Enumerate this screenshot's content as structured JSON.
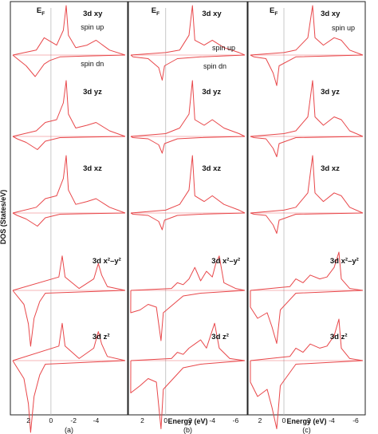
{
  "y_axis_label": "DOS (States/eV)",
  "fermi_label": "E",
  "fermi_subscript": "F",
  "spin_up_label": "spin up",
  "spin_dn_label": "spin dn",
  "x_axis_label": "Energy (eV)",
  "colors": {
    "curve": "#e8474a",
    "axis": "#777777",
    "fermi": "#bbbbbb",
    "frame": "#222222"
  },
  "chart_data": [
    {
      "type": "line",
      "panel": "(a)",
      "x_ticks": [
        "2",
        "0",
        "-2",
        "-4"
      ],
      "xlim": [
        -6.8,
        3.6
      ],
      "x_reversed": true,
      "grid": false,
      "series": [
        {
          "name": "3d xy",
          "up": [
            [
              1.3,
              0.1
            ],
            [
              0.6,
              0.35
            ],
            [
              -0.5,
              0.2
            ],
            [
              -1.1,
              0.5
            ],
            [
              -1.35,
              1.0
            ],
            [
              -1.55,
              0.4
            ],
            [
              -2.2,
              0.15
            ],
            [
              -3.2,
              0.2
            ],
            [
              -4.0,
              0.3
            ],
            [
              -5.2,
              0.1
            ]
          ],
          "dn": [
            [
              3.0,
              -0.1
            ],
            [
              2.2,
              -0.3
            ],
            [
              1.4,
              -0.6
            ],
            [
              0.6,
              -0.25
            ],
            [
              0.1,
              -0.15
            ],
            [
              -0.8,
              -0.05
            ],
            [
              -3.0,
              -0.03
            ]
          ]
        },
        {
          "name": "3d yz",
          "up": [
            [
              1.3,
              0.1
            ],
            [
              0.5,
              0.25
            ],
            [
              -0.5,
              0.3
            ],
            [
              -1.1,
              0.6
            ],
            [
              -1.35,
              1.0
            ],
            [
              -1.55,
              0.4
            ],
            [
              -2.2,
              0.15
            ],
            [
              -3.2,
              0.2
            ],
            [
              -4.0,
              0.25
            ],
            [
              -5.2,
              0.1
            ]
          ],
          "dn": [
            [
              3.0,
              -0.1
            ],
            [
              2.2,
              -0.25
            ],
            [
              1.2,
              -0.55
            ],
            [
              0.5,
              -0.2
            ],
            [
              -0.8,
              -0.05
            ],
            [
              -3.0,
              -0.03
            ]
          ]
        },
        {
          "name": "3d xz",
          "up": [
            [
              1.3,
              0.1
            ],
            [
              0.5,
              0.25
            ],
            [
              -0.5,
              0.3
            ],
            [
              -1.1,
              0.6
            ],
            [
              -1.35,
              1.0
            ],
            [
              -1.55,
              0.4
            ],
            [
              -2.2,
              0.15
            ],
            [
              -3.2,
              0.2
            ],
            [
              -4.0,
              0.25
            ],
            [
              -5.2,
              0.1
            ]
          ],
          "dn": [
            [
              3.0,
              -0.1
            ],
            [
              2.2,
              -0.25
            ],
            [
              1.2,
              -0.55
            ],
            [
              0.5,
              -0.2
            ],
            [
              -0.8,
              -0.05
            ],
            [
              -3.0,
              -0.03
            ]
          ]
        },
        {
          "name": "3d x²–y²",
          "up": [
            [
              -0.7,
              0.35
            ],
            [
              -1.0,
              0.9
            ],
            [
              -1.25,
              0.35
            ],
            [
              -2.5,
              0.05
            ],
            [
              -3.8,
              0.3
            ],
            [
              -4.2,
              0.7
            ],
            [
              -4.5,
              0.4
            ],
            [
              -5.0,
              0.1
            ]
          ],
          "dn": [
            [
              3.2,
              -0.05
            ],
            [
              2.4,
              -0.25
            ],
            [
              2.0,
              -0.6
            ],
            [
              1.8,
              -1.0
            ],
            [
              1.5,
              -0.5
            ],
            [
              1.0,
              -0.2
            ],
            [
              0.5,
              -0.05
            ]
          ]
        },
        {
          "name": "3d z²",
          "up": [
            [
              -0.7,
              0.35
            ],
            [
              -1.0,
              0.9
            ],
            [
              -1.25,
              0.35
            ],
            [
              -2.5,
              0.05
            ],
            [
              -3.8,
              0.3
            ],
            [
              -4.2,
              0.7
            ],
            [
              -4.5,
              0.4
            ],
            [
              -5.0,
              0.1
            ]
          ],
          "dn": [
            [
              3.2,
              -0.05
            ],
            [
              2.4,
              -0.25
            ],
            [
              2.0,
              -0.6
            ],
            [
              1.8,
              -1.0
            ],
            [
              1.5,
              -0.5
            ],
            [
              1.0,
              -0.2
            ],
            [
              0.5,
              -0.05
            ]
          ]
        }
      ]
    },
    {
      "type": "line",
      "panel": "(b)",
      "x_ticks": [
        "2",
        "0",
        "-2",
        "-4",
        "-6"
      ],
      "xlim": [
        -7.0,
        3.2
      ],
      "x_reversed": true,
      "grid": false,
      "series": [
        {
          "name": "3d xy",
          "up": [
            [
              0.0,
              0.05
            ],
            [
              -1.2,
              0.1
            ],
            [
              -2.0,
              0.4
            ],
            [
              -2.3,
              1.0
            ],
            [
              -2.5,
              0.3
            ],
            [
              -3.3,
              0.2
            ],
            [
              -4.0,
              0.3
            ],
            [
              -5.0,
              0.15
            ],
            [
              -6.3,
              0.05
            ]
          ],
          "dn": [
            [
              2.8,
              -0.05
            ],
            [
              1.5,
              -0.1
            ],
            [
              0.6,
              -0.35
            ],
            [
              0.3,
              -0.7
            ],
            [
              0.1,
              -0.3
            ],
            [
              -1.0,
              -0.1
            ],
            [
              -3.0,
              -0.05
            ]
          ]
        },
        {
          "name": "3d yz",
          "up": [
            [
              0.0,
              0.05
            ],
            [
              -1.2,
              0.15
            ],
            [
              -2.0,
              0.4
            ],
            [
              -2.3,
              1.0
            ],
            [
              -2.5,
              0.3
            ],
            [
              -3.3,
              0.2
            ],
            [
              -4.0,
              0.3
            ],
            [
              -5.0,
              0.15
            ],
            [
              -6.3,
              0.05
            ]
          ],
          "dn": [
            [
              2.8,
              -0.05
            ],
            [
              1.5,
              -0.1
            ],
            [
              0.6,
              -0.35
            ],
            [
              0.3,
              -0.7
            ],
            [
              0.1,
              -0.3
            ],
            [
              -1.0,
              -0.1
            ],
            [
              -3.0,
              -0.05
            ]
          ]
        },
        {
          "name": "3d xz",
          "up": [
            [
              0.0,
              0.05
            ],
            [
              -1.2,
              0.15
            ],
            [
              -2.0,
              0.4
            ],
            [
              -2.3,
              1.0
            ],
            [
              -2.5,
              0.3
            ],
            [
              -3.3,
              0.2
            ],
            [
              -4.0,
              0.3
            ],
            [
              -5.0,
              0.15
            ],
            [
              -6.3,
              0.05
            ]
          ],
          "dn": [
            [
              2.8,
              -0.05
            ],
            [
              1.5,
              -0.1
            ],
            [
              0.6,
              -0.35
            ],
            [
              0.3,
              -0.7
            ],
            [
              0.1,
              -0.3
            ],
            [
              -1.0,
              -0.1
            ],
            [
              -3.0,
              -0.05
            ]
          ]
        },
        {
          "name": "3d x²–y²",
          "up": [
            [
              -0.5,
              0.05
            ],
            [
              -1.0,
              0.2
            ],
            [
              -1.5,
              0.15
            ],
            [
              -2.0,
              0.3
            ],
            [
              -2.5,
              0.6
            ],
            [
              -3.0,
              0.25
            ],
            [
              -3.5,
              0.5
            ],
            [
              -4.0,
              0.35
            ],
            [
              -4.3,
              0.7
            ],
            [
              -4.6,
              0.9
            ],
            [
              -5.0,
              0.2
            ],
            [
              -6.0,
              0.05
            ]
          ],
          "dn": [
            [
              3.0,
              -0.4
            ],
            [
              2.2,
              -0.35
            ],
            [
              1.5,
              -0.25
            ],
            [
              0.8,
              -0.3
            ],
            [
              0.4,
              -0.9
            ],
            [
              0.2,
              -0.4
            ],
            [
              -1.5,
              -0.1
            ],
            [
              -3.0,
              -0.05
            ]
          ]
        },
        {
          "name": "3d z²",
          "up": [
            [
              -0.5,
              0.05
            ],
            [
              -1.0,
              0.2
            ],
            [
              -1.5,
              0.15
            ],
            [
              -2.0,
              0.3
            ],
            [
              -2.5,
              0.4
            ],
            [
              -3.0,
              0.5
            ],
            [
              -3.5,
              0.3
            ],
            [
              -4.2,
              0.9
            ],
            [
              -4.6,
              0.3
            ],
            [
              -5.5,
              0.05
            ]
          ],
          "dn": [
            [
              3.0,
              -0.45
            ],
            [
              2.2,
              -0.35
            ],
            [
              1.5,
              -0.25
            ],
            [
              0.8,
              -0.3
            ],
            [
              0.4,
              -0.95
            ],
            [
              0.2,
              -0.4
            ],
            [
              -1.5,
              -0.1
            ],
            [
              -3.0,
              -0.05
            ]
          ]
        }
      ]
    },
    {
      "type": "line",
      "panel": "(c)",
      "x_ticks": [
        "2",
        "0",
        "-2",
        "-4",
        "-6"
      ],
      "xlim": [
        -6.8,
        3.0
      ],
      "x_reversed": true,
      "grid": false,
      "series": [
        {
          "name": "3d xy",
          "up": [
            [
              0.0,
              0.05
            ],
            [
              -1.0,
              0.1
            ],
            [
              -2.0,
              0.35
            ],
            [
              -2.4,
              1.0
            ],
            [
              -2.6,
              0.35
            ],
            [
              -3.3,
              0.2
            ],
            [
              -4.2,
              0.35
            ],
            [
              -4.8,
              0.3
            ],
            [
              -5.5,
              0.1
            ]
          ],
          "dn": [
            [
              2.5,
              -0.05
            ],
            [
              1.5,
              -0.1
            ],
            [
              0.9,
              -0.5
            ],
            [
              0.6,
              -0.85
            ],
            [
              0.4,
              -0.3
            ],
            [
              -1.0,
              -0.05
            ]
          ]
        },
        {
          "name": "3d yz",
          "up": [
            [
              0.0,
              0.05
            ],
            [
              -1.0,
              0.1
            ],
            [
              -2.0,
              0.35
            ],
            [
              -2.4,
              1.0
            ],
            [
              -2.6,
              0.35
            ],
            [
              -3.3,
              0.2
            ],
            [
              -4.2,
              0.35
            ],
            [
              -4.8,
              0.3
            ],
            [
              -5.5,
              0.1
            ]
          ],
          "dn": [
            [
              2.5,
              -0.05
            ],
            [
              1.5,
              -0.1
            ],
            [
              0.9,
              -0.5
            ],
            [
              0.6,
              -0.85
            ],
            [
              0.4,
              -0.3
            ],
            [
              -1.0,
              -0.05
            ]
          ]
        },
        {
          "name": "3d xz",
          "up": [
            [
              0.0,
              0.05
            ],
            [
              -1.0,
              0.1
            ],
            [
              -2.0,
              0.35
            ],
            [
              -2.4,
              1.0
            ],
            [
              -2.6,
              0.35
            ],
            [
              -3.3,
              0.2
            ],
            [
              -4.2,
              0.35
            ],
            [
              -4.8,
              0.3
            ],
            [
              -5.5,
              0.1
            ]
          ],
          "dn": [
            [
              2.5,
              -0.05
            ],
            [
              1.5,
              -0.1
            ],
            [
              0.9,
              -0.5
            ],
            [
              0.6,
              -0.85
            ],
            [
              0.4,
              -0.3
            ],
            [
              -1.0,
              -0.05
            ]
          ]
        },
        {
          "name": "3d x²–y²",
          "up": [
            [
              -0.5,
              0.1
            ],
            [
              -1.0,
              0.3
            ],
            [
              -1.6,
              0.2
            ],
            [
              -2.2,
              0.4
            ],
            [
              -3.0,
              0.3
            ],
            [
              -3.6,
              0.35
            ],
            [
              -4.2,
              0.6
            ],
            [
              -4.6,
              1.0
            ],
            [
              -4.8,
              0.3
            ],
            [
              -5.5,
              0.05
            ]
          ],
          "dn": [
            [
              2.8,
              -0.3
            ],
            [
              2.2,
              -0.5
            ],
            [
              1.4,
              -0.4
            ],
            [
              1.0,
              -0.65
            ],
            [
              0.6,
              -0.95
            ],
            [
              0.3,
              -0.35
            ],
            [
              -1.0,
              -0.05
            ]
          ]
        },
        {
          "name": "3d z²",
          "up": [
            [
              -0.5,
              0.1
            ],
            [
              -1.0,
              0.3
            ],
            [
              -1.6,
              0.2
            ],
            [
              -2.2,
              0.4
            ],
            [
              -3.0,
              0.3
            ],
            [
              -3.6,
              0.35
            ],
            [
              -4.2,
              0.6
            ],
            [
              -4.6,
              1.0
            ],
            [
              -4.8,
              0.3
            ],
            [
              -5.5,
              0.05
            ]
          ],
          "dn": [
            [
              2.8,
              -0.3
            ],
            [
              2.2,
              -0.5
            ],
            [
              1.4,
              -0.4
            ],
            [
              1.0,
              -0.65
            ],
            [
              0.6,
              -0.95
            ],
            [
              0.3,
              -0.35
            ],
            [
              -1.0,
              -0.05
            ]
          ]
        }
      ]
    }
  ]
}
